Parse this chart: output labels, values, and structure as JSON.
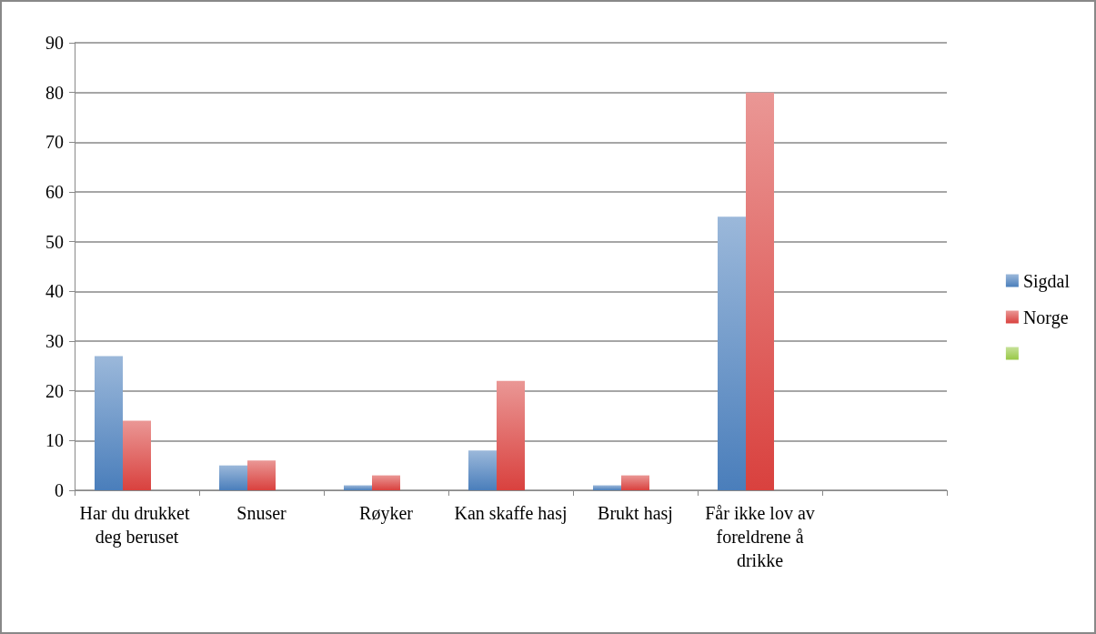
{
  "chart_data": {
    "type": "bar",
    "categories": [
      "Har du drukket deg beruset",
      "Snuser",
      "Røyker",
      "Kan skaffe hasj",
      "Brukt hasj",
      "Får ikke lov av foreldrene å drikke",
      null
    ],
    "series": [
      {
        "name": "Sigdal",
        "color": "#4a7ebb",
        "values": [
          27,
          5,
          1,
          8,
          1,
          55,
          null
        ]
      },
      {
        "name": "Norge",
        "color": "#d9413e",
        "values": [
          14,
          6,
          3,
          22,
          3,
          80,
          null
        ]
      },
      {
        "color": "#98c846",
        "values": [
          null,
          null,
          null,
          null,
          null,
          null,
          null
        ]
      }
    ],
    "ylim": [
      0,
      90
    ],
    "yticks": [
      0,
      10,
      20,
      30,
      40,
      50,
      60,
      70,
      80,
      90
    ],
    "grid": "y",
    "legend": "right"
  }
}
